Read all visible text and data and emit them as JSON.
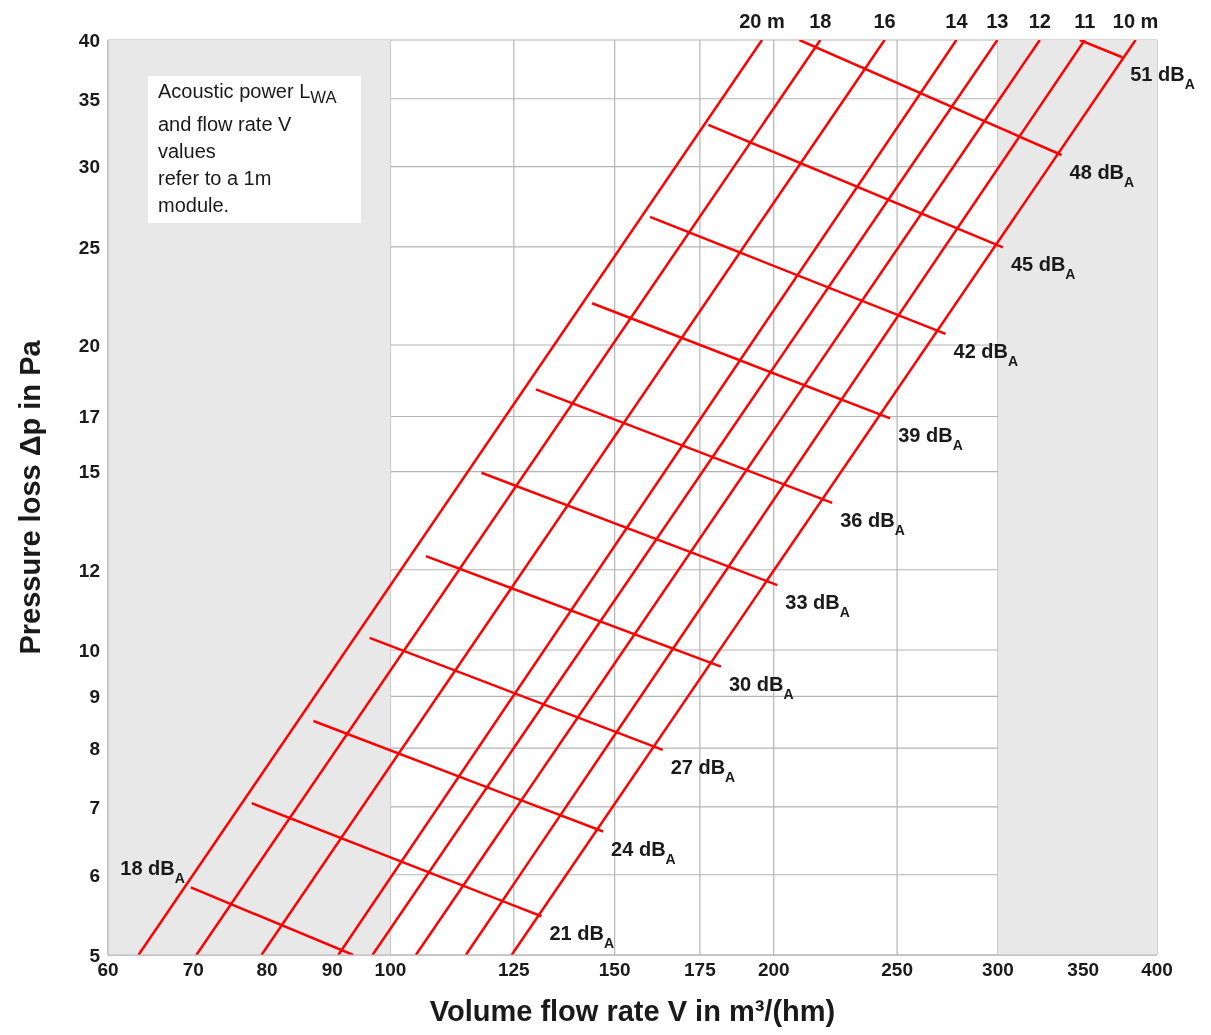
{
  "chart_data": {
    "type": "line",
    "xlabel": "Volume flow rate V in m³/(hm)",
    "ylabel": "Pressure loss Δp in Pa",
    "log": "xy",
    "grid": true,
    "marker": "none",
    "line_style": "solid",
    "xlim": [
      60,
      400
    ],
    "xticks": [
      60,
      70,
      80,
      90,
      100,
      125,
      150,
      175,
      200,
      250,
      300,
      350,
      400
    ],
    "ylim": [
      5,
      40
    ],
    "yticks": [
      5,
      6,
      7,
      8,
      9,
      10,
      12,
      15,
      17,
      20,
      25,
      30,
      35,
      40
    ],
    "bands": [
      {
        "axis": "x",
        "from": 60,
        "to": 100,
        "color": "#e8e8e8"
      },
      {
        "axis": "x",
        "from": 300,
        "to": 400,
        "color": "#e8e8e8"
      }
    ],
    "annotations": [
      "Acoustic power L$_{WA}$\nand flow rate V\nvalues\nrefer to a 1m\nmodule."
    ],
    "series": [
      {
        "name": "20 m",
        "color": "#ff0000",
        "x": [
          63.4,
          195.8
        ],
        "values": [
          5,
          40
        ]
      },
      {
        "name": "18",
        "color": "#ff0000",
        "x": [
          70.4,
          217.6
        ],
        "values": [
          5,
          40
        ]
      },
      {
        "name": "16",
        "color": "#ff0000",
        "x": [
          79.2,
          244.4
        ],
        "values": [
          5,
          40
        ]
      },
      {
        "name": "14",
        "color": "#ff0000",
        "x": [
          91.0,
          278.3
        ],
        "values": [
          5,
          40
        ]
      },
      {
        "name": "13",
        "color": "#ff0000",
        "x": [
          96.8,
          299.7
        ],
        "values": [
          5,
          40
        ]
      },
      {
        "name": "12",
        "color": "#ff0000",
        "x": [
          104.7,
          323.6
        ],
        "values": [
          5,
          40
        ]
      },
      {
        "name": "11",
        "color": "#ff0000",
        "x": [
          114.6,
          351.0
        ],
        "values": [
          5,
          40
        ]
      },
      {
        "name": "10 m",
        "color": "#ff0000",
        "x": [
          124.5,
          384.8
        ],
        "values": [
          5,
          40
        ]
      },
      {
        "name": "18 dB$_{A}$",
        "color": "#ff0000",
        "x": [
          69.7,
          93.5
        ],
        "values": [
          5.83,
          5
        ]
      },
      {
        "name": "21 dB$_{A}$",
        "color": "#ff0000",
        "x": [
          77.8,
          131.4
        ],
        "values": [
          7.06,
          5.46
        ]
      },
      {
        "name": "24 dB$_{A}$",
        "color": "#ff0000",
        "x": [
          87.0,
          146.9
        ],
        "values": [
          8.51,
          6.62
        ]
      },
      {
        "name": "27 dB$_{A}$",
        "color": "#ff0000",
        "x": [
          96.3,
          163.6
        ],
        "values": [
          10.28,
          7.97
        ]
      },
      {
        "name": "30 dB$_{A}$",
        "color": "#ff0000",
        "x": [
          106.6,
          181.8
        ],
        "values": [
          12.38,
          9.63
        ]
      },
      {
        "name": "33 dB$_{A}$",
        "color": "#ff0000",
        "x": [
          117.9,
          201.3
        ],
        "values": [
          14.96,
          11.59
        ]
      },
      {
        "name": "36 dB$_{A}$",
        "color": "#ff0000",
        "x": [
          130.1,
          222.3
        ],
        "values": [
          18.08,
          13.97
        ]
      },
      {
        "name": "39 dB$_{A}$",
        "color": "#ff0000",
        "x": [
          144.0,
          246.9
        ],
        "values": [
          21.99,
          16.93
        ]
      },
      {
        "name": "42 dB$_{A}$",
        "color": "#ff0000",
        "x": [
          159.9,
          272.9
        ],
        "values": [
          26.76,
          20.51
        ]
      },
      {
        "name": "45 dB$_{A}$",
        "color": "#ff0000",
        "x": [
          177.7,
          302.7
        ],
        "values": [
          32.98,
          24.97
        ]
      },
      {
        "name": "48 dB$_{A}$",
        "color": "#ff0000",
        "x": [
          209.5,
          336.6
        ],
        "values": [
          40,
          30.8
        ]
      },
      {
        "name": "51 dB$_{A}$",
        "color": "#ff0000",
        "x": [
          347.9,
          375.6
        ],
        "values": [
          40,
          38.46
        ]
      }
    ]
  }
}
